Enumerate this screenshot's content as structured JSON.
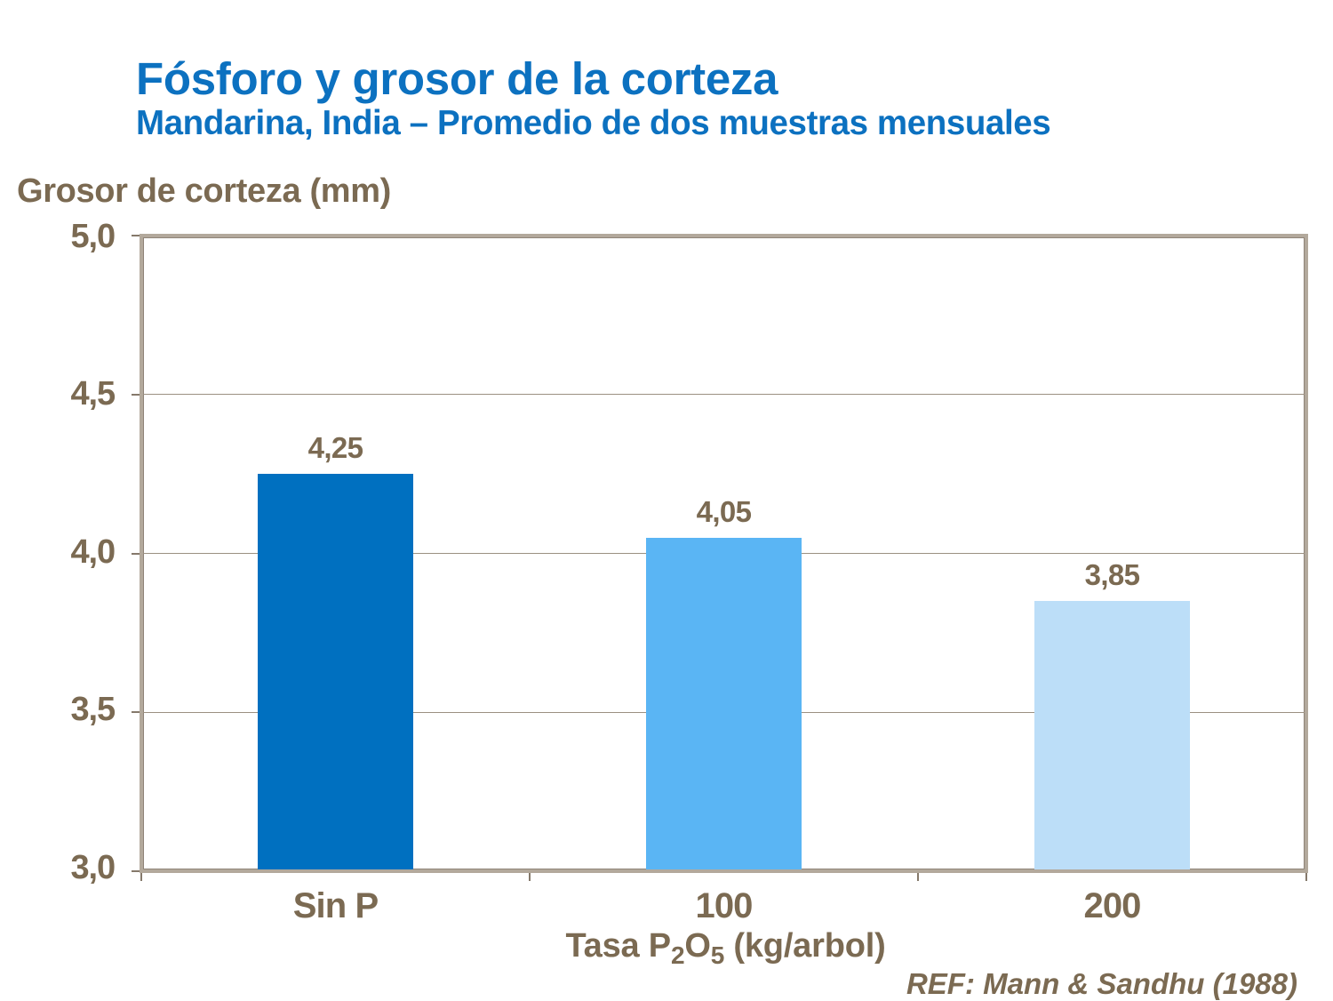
{
  "header": {
    "title": "Fósforo y grosor de la corteza",
    "subtitle": "Mandarina, India – Promedio de dos muestras mensuales"
  },
  "footer": {
    "ref": "REF: Mann & Sandhu (1988)"
  },
  "chart_data": {
    "type": "bar",
    "title": "Fósforo y grosor de la corteza",
    "subtitle": "Mandarina, India – Promedio de dos muestras mensuales",
    "categories": [
      "Sin P",
      "100",
      "200"
    ],
    "values": [
      4.25,
      4.05,
      3.85
    ],
    "value_labels": [
      "4,25",
      "4,05",
      "3,85"
    ],
    "bar_colors": [
      "#0070c0",
      "#5ab5f4",
      "#bcdef8"
    ],
    "ylabel": "Grosor de corteza (mm)",
    "xlabel": "Tasa P2O5 (kg/arbol)",
    "xlabel_parts": {
      "p1": "Tasa P",
      "sub1": "2",
      "p2": "O",
      "sub2": "5",
      "p3": " (kg/arbol)"
    },
    "ylim": [
      3.0,
      5.0
    ],
    "yticks": [
      {
        "value": 5.0,
        "label": "5,0"
      },
      {
        "value": 4.5,
        "label": "4,5"
      },
      {
        "value": 4.0,
        "label": "4,0"
      },
      {
        "value": 3.5,
        "label": "3,5"
      },
      {
        "value": 3.0,
        "label": "3,0"
      }
    ],
    "grid": true,
    "legend": false,
    "bar_gap_ratio": 1.5
  },
  "style": {
    "title_color": "#0c71c0",
    "text_color": "#7b6a52",
    "axis_border_color": "#b3a99c",
    "axis_inner_edge_color": "#8f8478",
    "gridline_color": "#9b9082",
    "tick_color": "#85796b",
    "background": "#ffffff"
  }
}
